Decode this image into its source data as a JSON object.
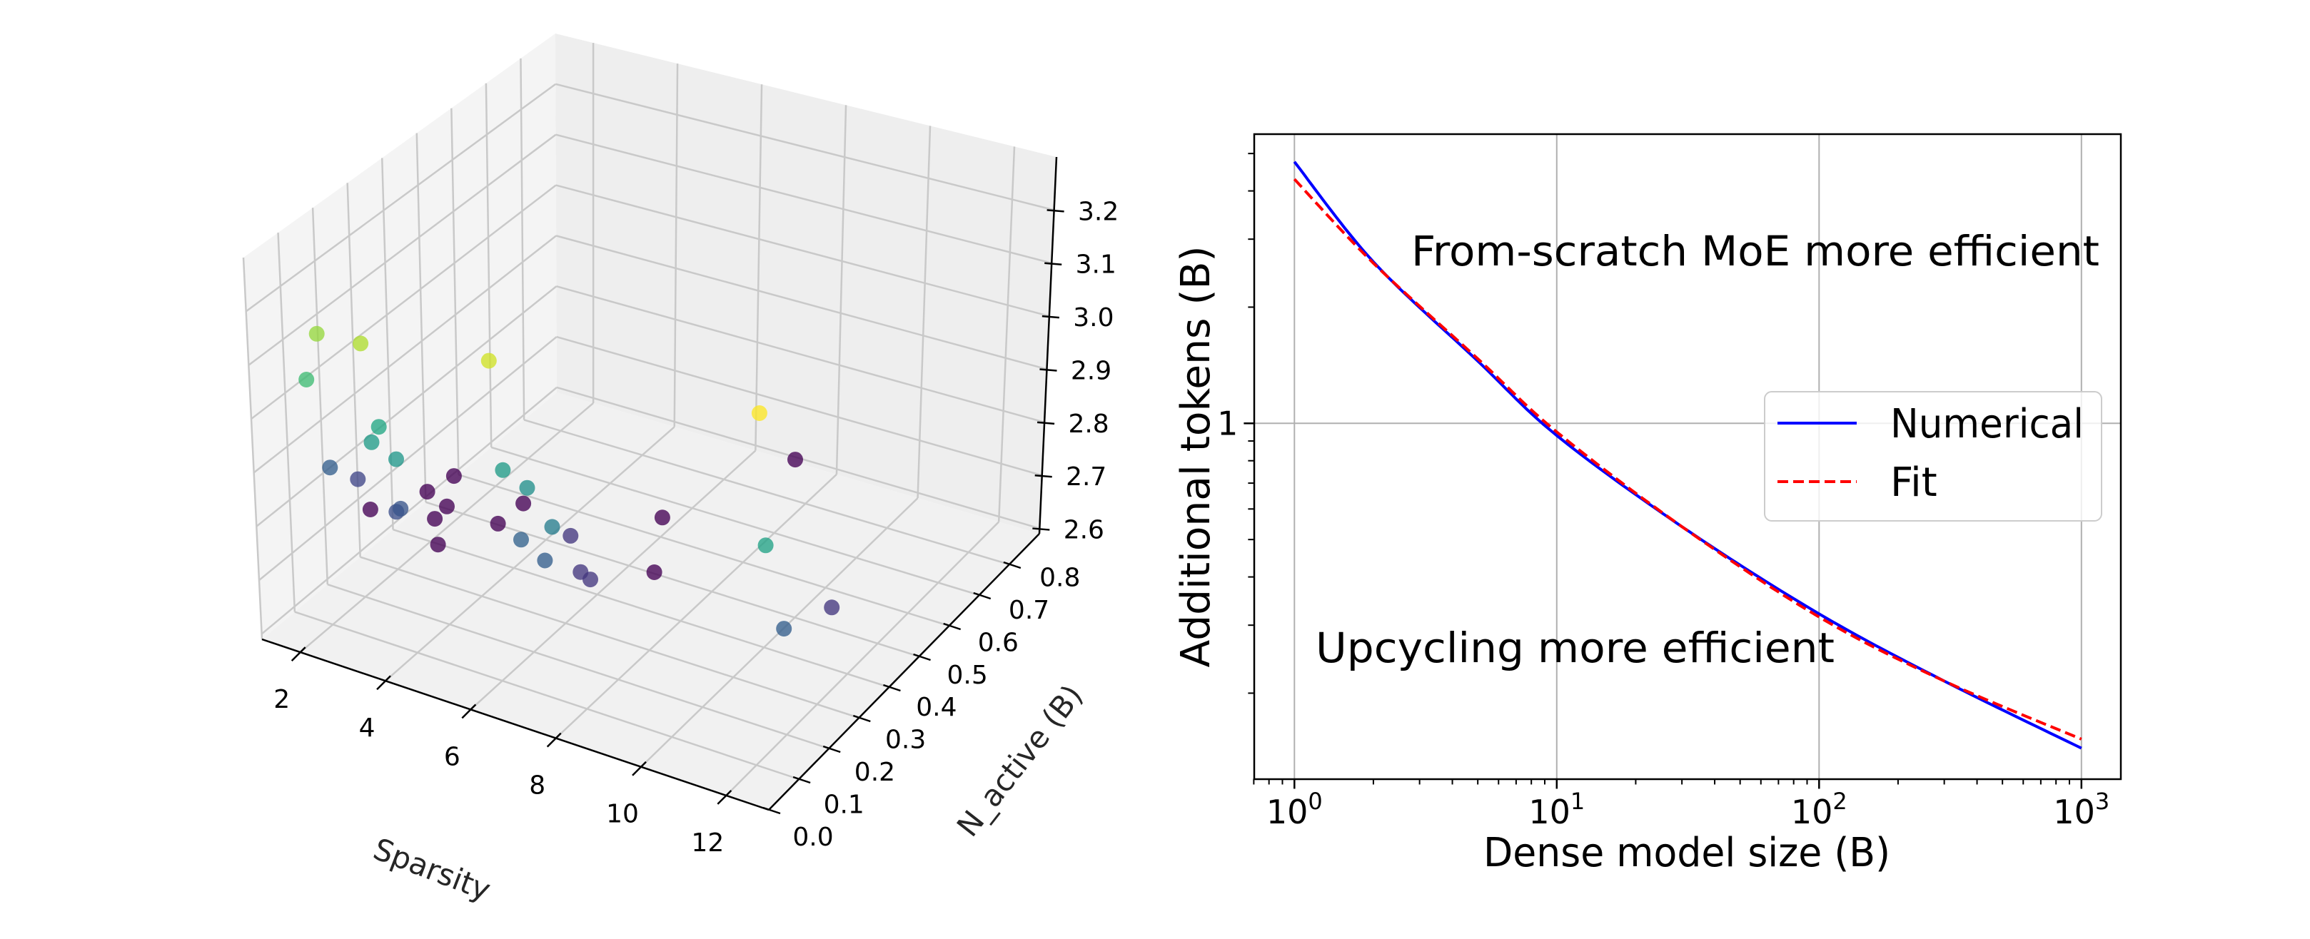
{
  "chart_data": [
    {
      "type": "scatter3d",
      "title": "",
      "xlabel": "Sparsity",
      "ylabel": "N_active (B)",
      "zlabel": "",
      "xlim": [
        1.1,
        13.0
      ],
      "ylim": [
        0.0,
        0.9
      ],
      "zlim": [
        2.59,
        3.3
      ],
      "xticks": [
        2,
        4,
        6,
        8,
        10,
        12
      ],
      "yticks": [
        0.0,
        0.1,
        0.2,
        0.3,
        0.4,
        0.5,
        0.6,
        0.7,
        0.8
      ],
      "zticks": [
        2.6,
        2.7,
        2.8,
        2.9,
        3.0,
        3.1,
        3.2
      ],
      "grid": true,
      "colormap": "viridis",
      "color_by": "z",
      "points": [
        {
          "x": 1.6,
          "y": 0.11,
          "z": 3.11
        },
        {
          "x": 2.7,
          "y": 0.1,
          "z": 3.13
        },
        {
          "x": 1.5,
          "y": 0.09,
          "z": 3.02
        },
        {
          "x": 5.5,
          "y": 0.13,
          "z": 3.16
        },
        {
          "x": 11.5,
          "y": 0.18,
          "z": 3.2
        },
        {
          "x": 3.2,
          "y": 0.09,
          "z": 2.97
        },
        {
          "x": 3.1,
          "y": 0.08,
          "z": 2.94
        },
        {
          "x": 3.75,
          "y": 0.07,
          "z": 2.93
        },
        {
          "x": 1.7,
          "y": 0.14,
          "z": 2.8
        },
        {
          "x": 2.0,
          "y": 0.19,
          "z": 2.75
        },
        {
          "x": 2.7,
          "y": 0.41,
          "z": 2.63
        },
        {
          "x": 2.5,
          "y": 0.35,
          "z": 2.63
        },
        {
          "x": 5.9,
          "y": 0.12,
          "z": 2.94
        },
        {
          "x": 6.4,
          "y": 0.13,
          "z": 2.91
        },
        {
          "x": 8.45,
          "y": 0.73,
          "z": 2.63
        },
        {
          "x": 1.8,
          "y": 0.26,
          "z": 2.63
        },
        {
          "x": 3.5,
          "y": 0.12,
          "z": 2.78
        },
        {
          "x": 3.4,
          "y": 0.12,
          "z": 2.77
        },
        {
          "x": 3.1,
          "y": 0.33,
          "z": 2.63
        },
        {
          "x": 3.1,
          "y": 0.29,
          "z": 2.63
        },
        {
          "x": 4.4,
          "y": 0.4,
          "z": 2.63
        },
        {
          "x": 4.3,
          "y": 0.33,
          "z": 2.63
        },
        {
          "x": 7.1,
          "y": 0.48,
          "z": 2.63
        },
        {
          "x": 3.6,
          "y": 0.23,
          "z": 2.63
        },
        {
          "x": 7.2,
          "y": 0.1,
          "z": 2.87
        },
        {
          "x": 6.5,
          "y": 0.26,
          "z": 2.72
        },
        {
          "x": 6.4,
          "y": 0.11,
          "z": 2.81
        },
        {
          "x": 12.0,
          "y": 0.13,
          "z": 2.96
        },
        {
          "x": 7.1,
          "y": 0.09,
          "z": 2.8
        },
        {
          "x": 7.3,
          "y": 0.18,
          "z": 2.72
        },
        {
          "x": 7.6,
          "y": 0.17,
          "z": 2.72
        },
        {
          "x": 7.9,
          "y": 0.34,
          "z": 2.63
        },
        {
          "x": 12.35,
          "y": 0.3,
          "z": 2.72
        },
        {
          "x": 12.5,
          "y": 0.12,
          "z": 2.8
        }
      ]
    },
    {
      "type": "line",
      "title": "",
      "xlabel": "Dense model size (B)",
      "ylabel": "Additional tokens (B)",
      "xscale": "log",
      "yscale": "log",
      "xlim": [
        0.7,
        1410
      ],
      "ylim": [
        0.12,
        5.6
      ],
      "xticks": [
        {
          "value": 1,
          "base": "10",
          "exp": "0"
        },
        {
          "value": 10,
          "base": "10",
          "exp": "1"
        },
        {
          "value": 100,
          "base": "10",
          "exp": "2"
        },
        {
          "value": 1000,
          "base": "10",
          "exp": "3"
        }
      ],
      "yticks": [
        {
          "value": 1,
          "label": "1"
        }
      ],
      "grid": true,
      "legend": {
        "position": "center-right",
        "entries": [
          {
            "label": "Numerical",
            "color": "#0000ff",
            "style": "solid"
          },
          {
            "label": "Fit",
            "color": "#ff0000",
            "style": "dashed"
          }
        ]
      },
      "annotations": [
        {
          "text": "From-scratch MoE more efficient"
        },
        {
          "text": "Upcycling more efficient"
        }
      ],
      "series": [
        {
          "name": "Numerical",
          "color": "#0000ff",
          "style": "solid",
          "x": [
            1,
            2,
            5,
            10,
            30,
            100,
            300,
            1000
          ],
          "y": [
            4.76,
            2.62,
            1.45,
            0.93,
            0.54,
            0.321,
            0.215,
            0.144
          ]
        },
        {
          "name": "Fit",
          "color": "#ff0000",
          "style": "dashed",
          "x": [
            1,
            2,
            5,
            10,
            30,
            100,
            300,
            1000
          ],
          "y": [
            4.29,
            2.6,
            1.47,
            0.95,
            0.54,
            0.315,
            0.215,
            0.152
          ]
        }
      ]
    }
  ]
}
